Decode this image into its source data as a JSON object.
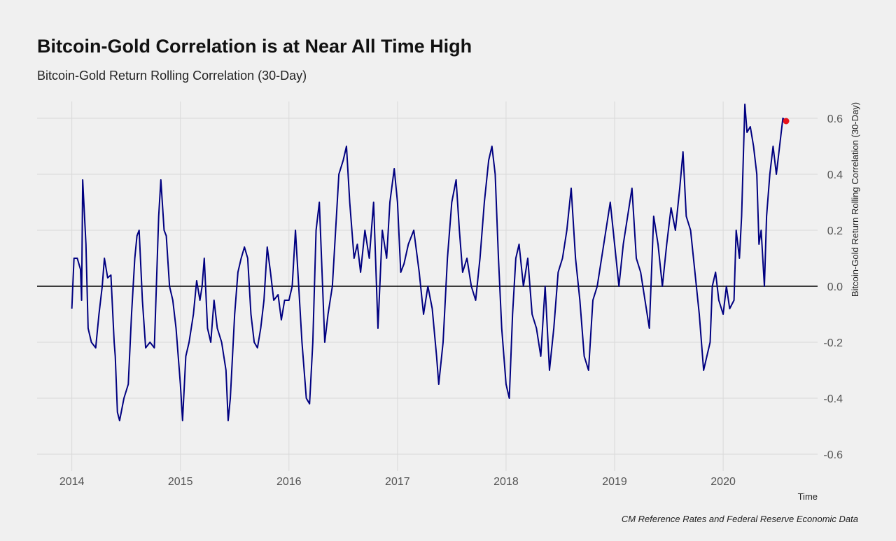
{
  "chart_data": {
    "type": "line",
    "title": "Bitcoin-Gold Correlation is at Near All Time High",
    "subtitle": "Bitcoin-Gold Return Rolling Correlation (30-Day)",
    "x_label": "Time",
    "y_label": "Bitcoin-Gold Return Rolling Correlation (30-Day)",
    "caption": "CM Reference Rates and Federal Reserve Economic Data",
    "xlim": [
      2013.68,
      2020.87
    ],
    "xticks": [
      2014,
      2015,
      2016,
      2017,
      2018,
      2019,
      2020
    ],
    "ylim": [
      -0.66,
      0.66
    ],
    "yticks": [
      0.6,
      0.4,
      0.2,
      {
        "value": 0,
        "label": "0.0"
      },
      -0.2,
      -0.4,
      -0.6
    ],
    "grid": true,
    "hline": 0,
    "y_axis_side": "right",
    "highlight_last": true,
    "highlight_color": "#e8131b",
    "series": [
      {
        "color": "#000080",
        "x": [
          2014.0,
          2014.02,
          2014.05,
          2014.08,
          2014.09,
          2014.1,
          2014.13,
          2014.15,
          2014.18,
          2014.22,
          2014.25,
          2014.28,
          2014.3,
          2014.33,
          2014.36,
          2014.39,
          2014.4,
          2014.42,
          2014.44,
          2014.48,
          2014.52,
          2014.55,
          2014.58,
          2014.6,
          2014.62,
          2014.65,
          2014.68,
          2014.72,
          2014.76,
          2014.8,
          2014.82,
          2014.85,
          2014.87,
          2014.9,
          2014.93,
          2014.96,
          2015.0,
          2015.02,
          2015.05,
          2015.08,
          2015.12,
          2015.15,
          2015.18,
          2015.2,
          2015.22,
          2015.25,
          2015.28,
          2015.31,
          2015.34,
          2015.38,
          2015.42,
          2015.44,
          2015.46,
          2015.5,
          2015.53,
          2015.56,
          2015.59,
          2015.62,
          2015.65,
          2015.68,
          2015.71,
          2015.74,
          2015.77,
          2015.8,
          2015.83,
          2015.86,
          2015.9,
          2015.93,
          2015.96,
          2016.0,
          2016.03,
          2016.06,
          2016.09,
          2016.12,
          2016.16,
          2016.19,
          2016.22,
          2016.25,
          2016.28,
          2016.3,
          2016.33,
          2016.36,
          2016.4,
          2016.43,
          2016.46,
          2016.5,
          2016.53,
          2016.56,
          2016.6,
          2016.63,
          2016.66,
          2016.7,
          2016.74,
          2016.78,
          2016.82,
          2016.86,
          2016.9,
          2016.93,
          2016.97,
          2017.0,
          2017.03,
          2017.06,
          2017.1,
          2017.15,
          2017.2,
          2017.24,
          2017.28,
          2017.32,
          2017.36,
          2017.38,
          2017.42,
          2017.46,
          2017.5,
          2017.54,
          2017.57,
          2017.6,
          2017.64,
          2017.68,
          2017.72,
          2017.76,
          2017.8,
          2017.84,
          2017.87,
          2017.9,
          2017.93,
          2017.96,
          2018.0,
          2018.03,
          2018.06,
          2018.09,
          2018.12,
          2018.16,
          2018.2,
          2018.24,
          2018.28,
          2018.32,
          2018.36,
          2018.4,
          2018.44,
          2018.48,
          2018.52,
          2018.56,
          2018.6,
          2018.64,
          2018.68,
          2018.72,
          2018.76,
          2018.8,
          2018.84,
          2018.88,
          2018.92,
          2018.96,
          2019.0,
          2019.04,
          2019.08,
          2019.12,
          2019.16,
          2019.2,
          2019.24,
          2019.28,
          2019.32,
          2019.36,
          2019.4,
          2019.44,
          2019.48,
          2019.52,
          2019.56,
          2019.6,
          2019.63,
          2019.66,
          2019.7,
          2019.74,
          2019.78,
          2019.82,
          2019.85,
          2019.88,
          2019.9,
          2019.93,
          2019.96,
          2020.0,
          2020.03,
          2020.06,
          2020.1,
          2020.12,
          2020.15,
          2020.17,
          2020.2,
          2020.22,
          2020.25,
          2020.28,
          2020.31,
          2020.33,
          2020.35,
          2020.38,
          2020.4,
          2020.43,
          2020.46,
          2020.49,
          2020.52,
          2020.55,
          2020.58
        ],
        "values": [
          -0.08,
          0.1,
          0.1,
          0.06,
          -0.05,
          0.38,
          0.15,
          -0.15,
          -0.2,
          -0.22,
          -0.1,
          0.0,
          0.1,
          0.03,
          0.04,
          -0.2,
          -0.25,
          -0.45,
          -0.48,
          -0.4,
          -0.35,
          -0.1,
          0.1,
          0.18,
          0.2,
          -0.05,
          -0.22,
          -0.2,
          -0.22,
          0.25,
          0.38,
          0.2,
          0.18,
          0.0,
          -0.05,
          -0.15,
          -0.35,
          -0.48,
          -0.25,
          -0.2,
          -0.1,
          0.02,
          -0.05,
          0.0,
          0.1,
          -0.15,
          -0.2,
          -0.05,
          -0.15,
          -0.2,
          -0.3,
          -0.48,
          -0.4,
          -0.1,
          0.05,
          0.1,
          0.14,
          0.1,
          -0.1,
          -0.2,
          -0.22,
          -0.15,
          -0.05,
          0.14,
          0.05,
          -0.05,
          -0.03,
          -0.12,
          -0.05,
          -0.05,
          0.0,
          0.2,
          0.0,
          -0.2,
          -0.4,
          -0.42,
          -0.2,
          0.2,
          0.3,
          0.1,
          -0.2,
          -0.1,
          0.0,
          0.2,
          0.4,
          0.45,
          0.5,
          0.3,
          0.1,
          0.15,
          0.05,
          0.2,
          0.1,
          0.3,
          -0.15,
          0.2,
          0.1,
          0.3,
          0.42,
          0.3,
          0.05,
          0.08,
          0.15,
          0.2,
          0.05,
          -0.1,
          0.0,
          -0.08,
          -0.25,
          -0.35,
          -0.2,
          0.1,
          0.3,
          0.38,
          0.2,
          0.05,
          0.1,
          0.0,
          -0.05,
          0.1,
          0.3,
          0.45,
          0.5,
          0.4,
          0.1,
          -0.15,
          -0.35,
          -0.4,
          -0.1,
          0.1,
          0.15,
          0.0,
          0.1,
          -0.1,
          -0.15,
          -0.25,
          0.0,
          -0.3,
          -0.15,
          0.05,
          0.1,
          0.2,
          0.35,
          0.1,
          -0.05,
          -0.25,
          -0.3,
          -0.05,
          0.0,
          0.1,
          0.2,
          0.3,
          0.15,
          0.0,
          0.15,
          0.25,
          0.35,
          0.1,
          0.05,
          -0.05,
          -0.15,
          0.25,
          0.15,
          0.0,
          0.15,
          0.28,
          0.2,
          0.35,
          0.48,
          0.25,
          0.2,
          0.05,
          -0.1,
          -0.3,
          -0.25,
          -0.2,
          0.0,
          0.05,
          -0.05,
          -0.1,
          0.0,
          -0.08,
          -0.05,
          0.2,
          0.1,
          0.25,
          0.65,
          0.55,
          0.57,
          0.5,
          0.4,
          0.15,
          0.2,
          0.0,
          0.25,
          0.4,
          0.5,
          0.4,
          0.5,
          0.6,
          0.59
        ]
      }
    ]
  }
}
